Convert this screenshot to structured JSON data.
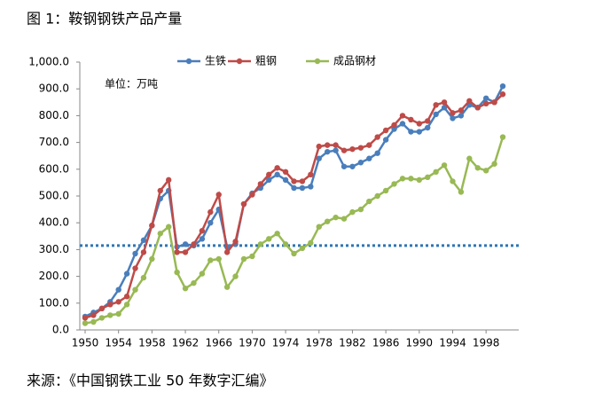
{
  "chart_data": {
    "type": "line",
    "title": "图 1：鞍钢钢铁产品产量",
    "source": "来源：《中国钢铁工业 50 年数字汇编》",
    "annotation": "单位：万吨",
    "x": [
      1950,
      1951,
      1952,
      1953,
      1954,
      1955,
      1956,
      1957,
      1958,
      1959,
      1960,
      1961,
      1962,
      1963,
      1964,
      1965,
      1966,
      1967,
      1968,
      1969,
      1970,
      1971,
      1972,
      1973,
      1974,
      1975,
      1976,
      1977,
      1978,
      1979,
      1980,
      1981,
      1982,
      1983,
      1984,
      1985,
      1986,
      1987,
      1988,
      1989,
      1990,
      1991,
      1992,
      1993,
      1994,
      1995,
      1996,
      1997,
      1998,
      1999,
      2000
    ],
    "series": [
      {
        "name": "生铁",
        "color": "#4a7ebb",
        "values": [
          50,
          65,
          80,
          105,
          150,
          210,
          285,
          335,
          390,
          490,
          520,
          310,
          320,
          315,
          340,
          400,
          450,
          310,
          320,
          470,
          510,
          530,
          560,
          580,
          560,
          530,
          530,
          535,
          640,
          665,
          670,
          610,
          610,
          625,
          640,
          660,
          710,
          750,
          770,
          740,
          740,
          755,
          805,
          830,
          790,
          800,
          840,
          830,
          865,
          850,
          910
        ]
      },
      {
        "name": "粗钢",
        "color": "#be4b48",
        "values": [
          45,
          55,
          80,
          95,
          105,
          125,
          230,
          290,
          390,
          520,
          560,
          290,
          290,
          320,
          370,
          440,
          505,
          290,
          330,
          470,
          505,
          545,
          580,
          605,
          590,
          555,
          555,
          580,
          685,
          690,
          690,
          670,
          675,
          680,
          690,
          720,
          745,
          765,
          800,
          785,
          770,
          780,
          840,
          850,
          810,
          820,
          855,
          830,
          845,
          850,
          880
        ]
      },
      {
        "name": "成品钢材",
        "color": "#98b954",
        "values": [
          25,
          30,
          45,
          55,
          60,
          95,
          150,
          195,
          265,
          360,
          385,
          215,
          155,
          175,
          210,
          260,
          265,
          160,
          200,
          265,
          275,
          320,
          340,
          360,
          320,
          285,
          305,
          325,
          385,
          405,
          420,
          415,
          440,
          450,
          480,
          500,
          520,
          545,
          565,
          565,
          560,
          570,
          590,
          615,
          555,
          515,
          640,
          605,
          595,
          620,
          720
        ]
      }
    ],
    "reference_line": 315,
    "reference_color": "#2e75b6",
    "xlim": [
      1950,
      2000
    ],
    "xticks": [
      1950,
      1954,
      1958,
      1962,
      1966,
      1970,
      1974,
      1978,
      1982,
      1986,
      1990,
      1994,
      1998
    ],
    "ylim": [
      0,
      1000
    ],
    "yticks": [
      {
        "value": 0,
        "label": "0.0"
      },
      {
        "value": 100,
        "label": "100.0"
      },
      {
        "value": 200,
        "label": "200.0"
      },
      {
        "value": 300,
        "label": "300.0"
      },
      {
        "value": 400,
        "label": "400.0"
      },
      {
        "value": 500,
        "label": "500.0"
      },
      {
        "value": 600,
        "label": "600.0"
      },
      {
        "value": 700,
        "label": "700.0"
      },
      {
        "value": 800,
        "label": "800.0"
      },
      {
        "value": 900,
        "label": "900.0"
      },
      {
        "value": 1000,
        "label": "1,000.0"
      }
    ],
    "grid": false,
    "legend": "top"
  }
}
